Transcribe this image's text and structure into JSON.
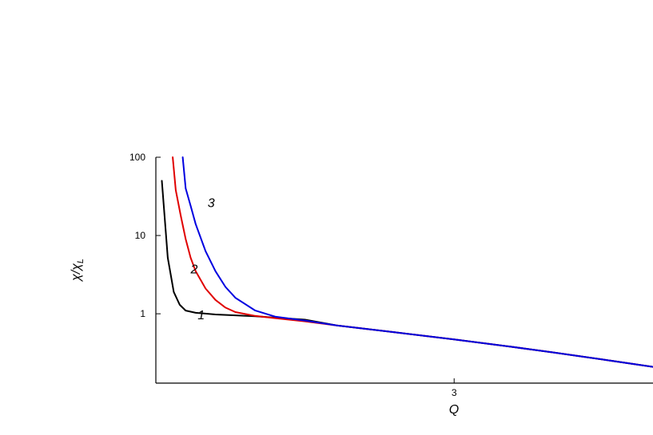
{
  "chart_data": {
    "type": "line",
    "title": "",
    "xlabel": "Q",
    "ylabel": "χ/χL",
    "ylabel_main": "χ/χ",
    "ylabel_sub": "L",
    "yscale": "log",
    "xlim": [
      0,
      5
    ],
    "ylim": [
      0.13,
      100
    ],
    "xticks": [
      3
    ],
    "xtick_labels": [
      "3"
    ],
    "yticks": [
      1,
      10,
      100
    ],
    "ytick_labels": [
      "1",
      "10",
      "100"
    ],
    "grid": false,
    "legend": "none",
    "series": [
      {
        "label": "1",
        "color": "#000000",
        "x": [
          0.06,
          0.12,
          0.18,
          0.24,
          0.3,
          0.4,
          0.6,
          1.0,
          1.5,
          1.82,
          2.4,
          3.0,
          3.5,
          4.0,
          4.5,
          5.0
        ],
        "y": [
          50,
          5.2,
          1.9,
          1.3,
          1.1,
          1.03,
          0.98,
          0.93,
          0.84,
          0.71,
          0.58,
          0.47,
          0.39,
          0.32,
          0.26,
          0.21
        ]
      },
      {
        "label": "2",
        "color": "#e00000",
        "x": [
          0.17,
          0.2,
          0.25,
          0.3,
          0.35,
          0.4,
          0.5,
          0.6,
          0.7,
          0.8,
          1.0,
          1.2,
          1.5,
          1.82,
          2.4,
          3.0,
          3.5,
          4.0,
          4.5,
          5.0
        ],
        "y": [
          100,
          38,
          18,
          9,
          5.2,
          3.5,
          2.1,
          1.5,
          1.2,
          1.05,
          0.94,
          0.88,
          0.8,
          0.71,
          0.58,
          0.47,
          0.39,
          0.32,
          0.26,
          0.21
        ]
      },
      {
        "label": "3",
        "color": "#0000e0",
        "x": [
          0.27,
          0.3,
          0.35,
          0.4,
          0.5,
          0.6,
          0.7,
          0.8,
          1.0,
          1.2,
          1.5,
          1.82,
          2.4,
          3.0,
          3.5,
          4.0,
          4.5,
          5.0
        ],
        "y": [
          100,
          40,
          24,
          14,
          6.3,
          3.5,
          2.2,
          1.6,
          1.1,
          0.92,
          0.82,
          0.71,
          0.58,
          0.47,
          0.39,
          0.32,
          0.26,
          0.21
        ]
      }
    ],
    "annotations": [
      {
        "text": "1",
        "x": 0.42,
        "y": 0.85
      },
      {
        "text": "2",
        "x": 0.35,
        "y": 3.3
      },
      {
        "text": "3",
        "x": 0.52,
        "y": 23
      }
    ]
  }
}
